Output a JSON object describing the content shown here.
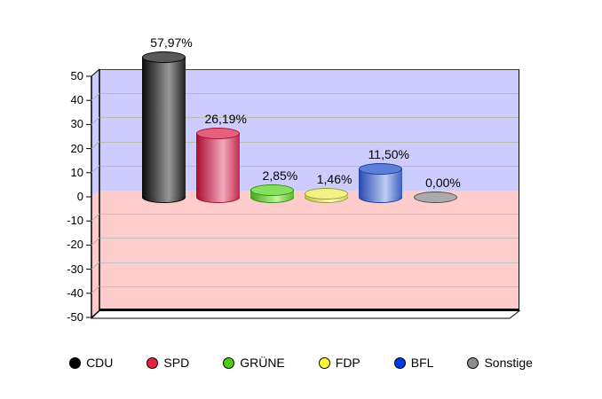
{
  "chart_data": {
    "type": "bar",
    "style": "3d-cylinder",
    "title": "",
    "categories": [
      "CDU",
      "SPD",
      "GRÜNE",
      "FDP",
      "BFL",
      "Sonstige"
    ],
    "values": [
      57.97,
      26.19,
      2.85,
      1.46,
      11.5,
      0
    ],
    "value_labels": [
      "57,97%",
      "26,19%",
      "2,85%",
      "1,46%",
      "11,50%",
      "0,00%"
    ],
    "ylim": [
      -50,
      50
    ],
    "ytick_step": 10,
    "ytick_labels": [
      "50",
      "40",
      "30",
      "20",
      "10",
      "0",
      "-10",
      "-20",
      "-30",
      "-40",
      "-50"
    ],
    "grid": true,
    "legend_position": "bottom",
    "plot_bg_positive": "#ccccff",
    "plot_bg_negative": "#ffcccc",
    "floor_color": "#ffffff",
    "gridline_color_positive": "#bcbcb2",
    "gridline_color_negative": "#c2c4c6",
    "series_colors": [
      {
        "name": "CDU",
        "legend": "#000000",
        "top": "#595959",
        "outline": "#000000",
        "bodyDark": "#0a0a0a",
        "bodyLight": "#999999",
        "bodyEnd": "#202020"
      },
      {
        "name": "SPD",
        "legend": "#e8213d",
        "top": "#e75f7d",
        "outline": "#9e1030",
        "bodyDark": "#a80c2e",
        "bodyLight": "#f2aabc",
        "bodyEnd": "#c22950"
      },
      {
        "name": "GRÜNE",
        "legend": "#4ccc14",
        "top": "#86df5f",
        "outline": "#2c930c",
        "bodyDark": "#48a51c",
        "bodyLight": "#c4f29c",
        "bodyEnd": "#5cb52e"
      },
      {
        "name": "FDP",
        "legend": "#ffff33",
        "top": "#f2f286",
        "outline": "#9a9a30",
        "bodyDark": "#c2c23e",
        "bodyLight": "#fbfbc6",
        "bodyEnd": "#d2d25a"
      },
      {
        "name": "BFL",
        "legend": "#0039e6",
        "top": "#5c80da",
        "outline": "#1c3a9a",
        "bodyDark": "#2947b2",
        "bodyLight": "#bdcdf2",
        "bodyEnd": "#3c5ec4"
      },
      {
        "name": "Sonstige",
        "legend": "#8c8c8c",
        "top": "#ababab",
        "outline": "#4c4c4c",
        "bodyDark": "#8a8a8a",
        "bodyLight": "#cfcfcf",
        "bodyEnd": "#9a9a9a"
      }
    ]
  },
  "legend": {
    "items": [
      {
        "label": "CDU",
        "color": "#000000"
      },
      {
        "label": "SPD",
        "color": "#e8213d"
      },
      {
        "label": "GRÜNE",
        "color": "#4ccc14"
      },
      {
        "label": "FDP",
        "color": "#ffff33"
      },
      {
        "label": "BFL",
        "color": "#0039e6"
      },
      {
        "label": "Sonstige",
        "color": "#8c8c8c"
      }
    ]
  }
}
